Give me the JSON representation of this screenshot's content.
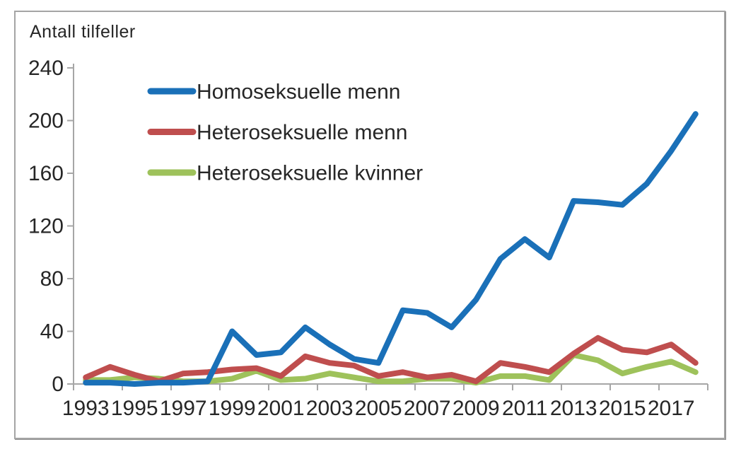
{
  "chart_data": {
    "type": "line",
    "title": "Antall tilfeller",
    "x": [
      1993,
      1994,
      1995,
      1996,
      1997,
      1998,
      1999,
      2000,
      2001,
      2002,
      2003,
      2004,
      2005,
      2006,
      2007,
      2008,
      2009,
      2010,
      2011,
      2012,
      2013,
      2014,
      2015,
      2016,
      2017,
      2018
    ],
    "x_tick_labels": [
      "1993",
      "1995",
      "1997",
      "1999",
      "2001",
      "2003",
      "2005",
      "2007",
      "2009",
      "2011",
      "2013",
      "2015",
      "2017"
    ],
    "y_ticks": [
      0,
      40,
      80,
      120,
      160,
      200,
      240
    ],
    "ylim": [
      0,
      240
    ],
    "grid": false,
    "legend_position": "inside-top-left",
    "axis_color": "#a6a6a6",
    "text_color": "#262626",
    "series": [
      {
        "name": "Homoseksuelle menn",
        "color": "#1a70b8",
        "values": [
          1,
          1,
          0,
          1,
          1,
          2,
          40,
          22,
          24,
          43,
          30,
          19,
          16,
          56,
          54,
          43,
          64,
          95,
          110,
          96,
          139,
          138,
          136,
          152,
          177,
          205
        ]
      },
      {
        "name": "Heteroseksuelle menn",
        "color": "#bf4e4e",
        "values": [
          5,
          13,
          7,
          2,
          8,
          9,
          11,
          12,
          6,
          21,
          16,
          14,
          6,
          9,
          5,
          7,
          2,
          16,
          13,
          9,
          23,
          35,
          26,
          24,
          30,
          16
        ]
      },
      {
        "name": "Heteroseksuelle kvinner",
        "color": "#9ec25b",
        "values": [
          3,
          3,
          5,
          4,
          2,
          2,
          4,
          10,
          3,
          4,
          8,
          5,
          2,
          2,
          4,
          4,
          1,
          6,
          6,
          3,
          22,
          18,
          8,
          13,
          17,
          9
        ]
      }
    ]
  }
}
